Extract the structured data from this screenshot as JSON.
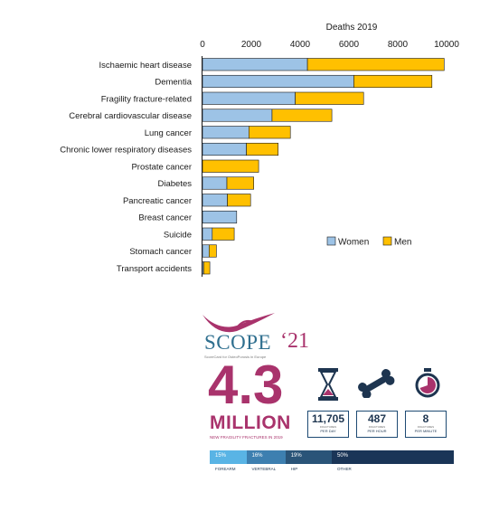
{
  "chart_data": {
    "type": "bar",
    "orientation": "horizontal",
    "stacked": true,
    "title": "Deaths 2019",
    "xlim": [
      0,
      10000
    ],
    "x_ticks": [
      "0",
      "2000",
      "4000",
      "6000",
      "8000",
      "10000"
    ],
    "categories": [
      "Ischaemic heart disease",
      "Dementia",
      "Fragility fracture-related",
      "Cerebral cardiovascular disease",
      "Lung cancer",
      "Chronic lower respiratory diseases",
      "Prostate cancer",
      "Diabetes",
      "Pancreatic cancer",
      "Breast cancer",
      "Suicide",
      "Stomach cancer",
      "Transport accidents"
    ],
    "series": [
      {
        "name": "Women",
        "color": "#9dc3e6",
        "values": [
          4300,
          6200,
          3800,
          2850,
          1900,
          1800,
          0,
          1000,
          1020,
          1400,
          400,
          270,
          50
        ]
      },
      {
        "name": "Men",
        "color": "#ffc000",
        "values": [
          5600,
          3200,
          2800,
          2450,
          1700,
          1300,
          2300,
          1100,
          950,
          0,
          900,
          300,
          250
        ]
      }
    ],
    "legend_position": "inside-bottom-right",
    "grid": false
  },
  "scope": {
    "logo_word": "SCOPE",
    "logo_year": "‘21",
    "logo_sub": "ScoreCard for OsteoPorosis in Europe",
    "big_number": "4.3",
    "big_unit": "MILLION",
    "big_caption": "NEW FRAGILITY FRACTURES IN 2019",
    "icons": [
      "hourglass-icon",
      "bone-icon",
      "stopwatch-icon"
    ],
    "stats": [
      {
        "value": "11,705",
        "small": "FRACTURES",
        "label": "PER DAY"
      },
      {
        "value": "487",
        "small": "FRACTURES",
        "label": "PER HOUR"
      },
      {
        "value": "8",
        "small": "FRACTURES",
        "label": "PER MINUTE"
      }
    ],
    "segments": [
      {
        "pct": "15%",
        "label": "FOREARM",
        "color": "#59b4e5",
        "share": 0.15
      },
      {
        "pct": "16%",
        "label": "VERTEBRAL",
        "color": "#3d7fb0",
        "share": 0.16
      },
      {
        "pct": "19%",
        "label": "HIP",
        "color": "#2a5478",
        "share": 0.19
      },
      {
        "pct": "50%",
        "label": "OTHER",
        "color": "#1a3557",
        "share": 0.5
      }
    ],
    "brand_colors": {
      "magenta": "#a9336c",
      "navy": "#1e3550"
    }
  }
}
